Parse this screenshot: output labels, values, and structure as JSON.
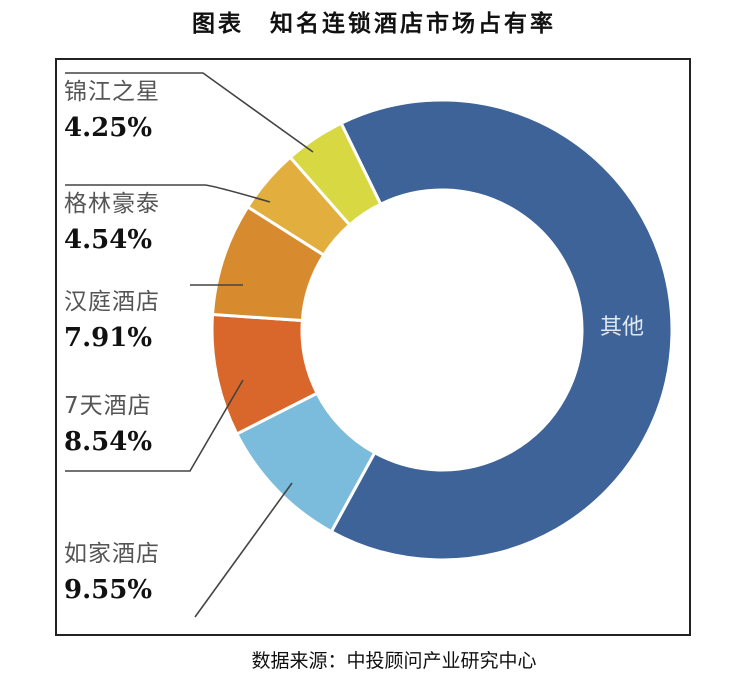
{
  "chart_data": {
    "type": "donut",
    "title": "图表　知名连锁酒店市场占有率",
    "source": "数据来源：中投顾问产业研究中心",
    "unit": "%",
    "slices": [
      {
        "label": "其他",
        "value": 65.21,
        "value_label": "",
        "color": "#3d6399"
      },
      {
        "label": "如家酒店",
        "value": 9.55,
        "value_label": "9.55%",
        "color": "#7bbcdc"
      },
      {
        "label": "7天酒店",
        "value": 8.54,
        "value_label": "8.54%",
        "color": "#d9672c"
      },
      {
        "label": "汉庭酒店",
        "value": 7.91,
        "value_label": "7.91%",
        "color": "#d88b2e"
      },
      {
        "label": "格林豪泰",
        "value": 4.54,
        "value_label": "4.54%",
        "color": "#e2ae3e"
      },
      {
        "label": "锦江之星",
        "value": 4.25,
        "value_label": "4.25%",
        "color": "#d8d843"
      }
    ]
  }
}
